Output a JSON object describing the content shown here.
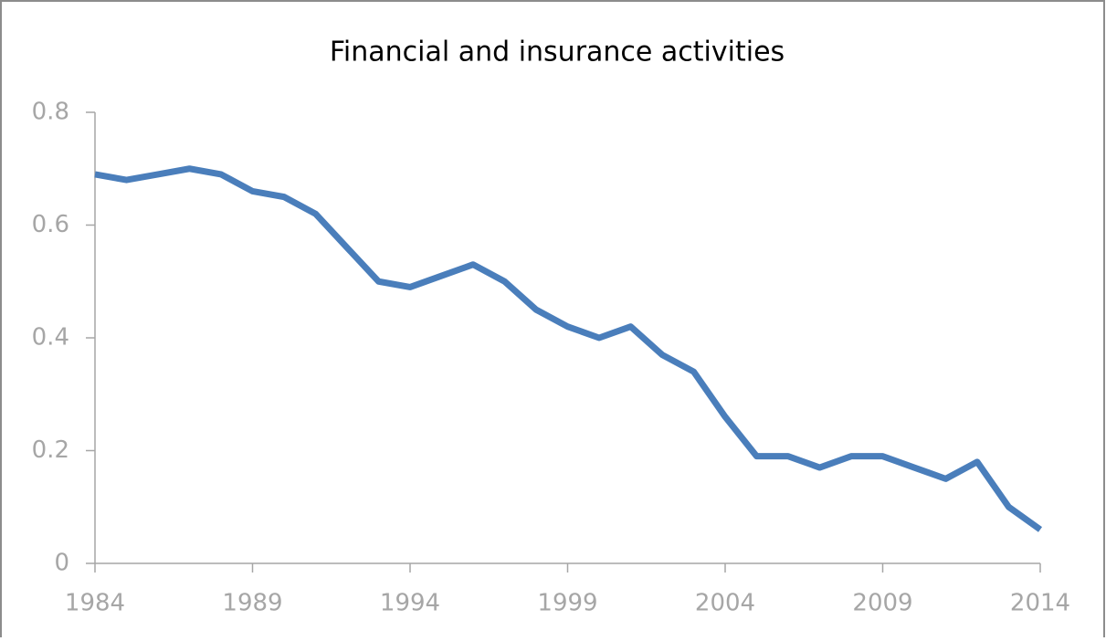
{
  "chart_data": {
    "type": "line",
    "title": "Financial and insurance activities",
    "x": [
      1984,
      1985,
      1986,
      1987,
      1988,
      1989,
      1990,
      1991,
      1992,
      1993,
      1994,
      1995,
      1996,
      1997,
      1998,
      1999,
      2000,
      2001,
      2002,
      2003,
      2004,
      2005,
      2006,
      2007,
      2008,
      2009,
      2010,
      2011,
      2012,
      2013,
      2014
    ],
    "series": [
      {
        "name": "Financial and insurance activities",
        "color": "#4a7ebb",
        "values": [
          0.69,
          0.68,
          0.69,
          0.7,
          0.69,
          0.66,
          0.65,
          0.62,
          0.56,
          0.5,
          0.49,
          0.51,
          0.53,
          0.5,
          0.45,
          0.42,
          0.4,
          0.42,
          0.37,
          0.34,
          0.26,
          0.19,
          0.19,
          0.17,
          0.19,
          0.19,
          0.17,
          0.15,
          0.18,
          0.1,
          0.06
        ]
      }
    ],
    "xlim": [
      1984,
      2014
    ],
    "xticks": [
      1984,
      1989,
      1994,
      1999,
      2004,
      2009,
      2014
    ],
    "ylim": [
      0,
      0.8
    ],
    "yticks": [
      0,
      0.2,
      0.4,
      0.6,
      0.8
    ],
    "grid": false
  }
}
